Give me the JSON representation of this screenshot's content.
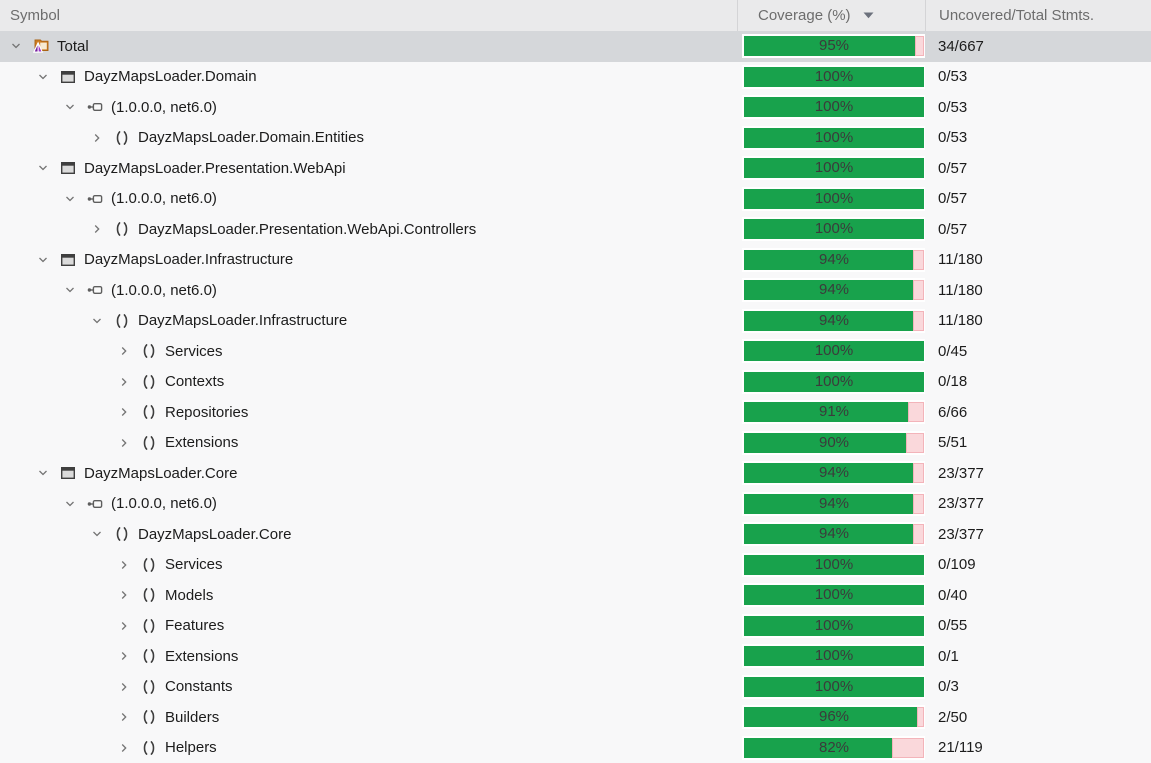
{
  "header": {
    "symbol": "Symbol",
    "coverage": "Coverage (%)",
    "uncovered": "Uncovered/Total Stmts.",
    "sort_icon": "sort-descending-icon",
    "sorted_column": "coverage"
  },
  "colors": {
    "green": "#18a24c",
    "pink_fill": "#fad8db",
    "pink_border": "#f3b4ba",
    "selected_row": "#d5d7da",
    "header_bg": "#eaeaeb",
    "row_bg": "#f8f8f9",
    "header_text": "#6d6d6d",
    "label_text": "#1c1c1c",
    "bar_text": "#3b3b3b",
    "solution_folder_orange": "#cd7c22",
    "solution_pyramid_purple": "#9c35cc"
  },
  "icon_legend": {
    "solution": "solution-icon",
    "project": "project-icon",
    "assembly": "assembly-icon",
    "namespace": "namespace-icon"
  },
  "rows": [
    {
      "label": "Total",
      "level": 0,
      "icon": "solution",
      "chevron": "expanded",
      "pct": 95,
      "pct_label": "95%",
      "stmts": "34/667",
      "selected": true
    },
    {
      "label": "DayzMapsLoader.Domain",
      "level": 1,
      "icon": "project",
      "chevron": "expanded",
      "pct": 100,
      "pct_label": "100%",
      "stmts": "0/53",
      "selected": false
    },
    {
      "label": "(1.0.0.0, net6.0)",
      "level": 2,
      "icon": "assembly",
      "chevron": "expanded",
      "pct": 100,
      "pct_label": "100%",
      "stmts": "0/53",
      "selected": false
    },
    {
      "label": "DayzMapsLoader.Domain.Entities",
      "level": 3,
      "icon": "namespace",
      "chevron": "collapsed",
      "pct": 100,
      "pct_label": "100%",
      "stmts": "0/53",
      "selected": false
    },
    {
      "label": "DayzMapsLoader.Presentation.WebApi",
      "level": 1,
      "icon": "project",
      "chevron": "expanded",
      "pct": 100,
      "pct_label": "100%",
      "stmts": "0/57",
      "selected": false
    },
    {
      "label": "(1.0.0.0, net6.0)",
      "level": 2,
      "icon": "assembly",
      "chevron": "expanded",
      "pct": 100,
      "pct_label": "100%",
      "stmts": "0/57",
      "selected": false
    },
    {
      "label": "DayzMapsLoader.Presentation.WebApi.Controllers",
      "level": 3,
      "icon": "namespace",
      "chevron": "collapsed",
      "pct": 100,
      "pct_label": "100%",
      "stmts": "0/57",
      "selected": false
    },
    {
      "label": "DayzMapsLoader.Infrastructure",
      "level": 1,
      "icon": "project",
      "chevron": "expanded",
      "pct": 94,
      "pct_label": "94%",
      "stmts": "11/180",
      "selected": false
    },
    {
      "label": "(1.0.0.0, net6.0)",
      "level": 2,
      "icon": "assembly",
      "chevron": "expanded",
      "pct": 94,
      "pct_label": "94%",
      "stmts": "11/180",
      "selected": false
    },
    {
      "label": "DayzMapsLoader.Infrastructure",
      "level": 3,
      "icon": "namespace",
      "chevron": "expanded",
      "pct": 94,
      "pct_label": "94%",
      "stmts": "11/180",
      "selected": false
    },
    {
      "label": "Services",
      "level": 4,
      "icon": "namespace",
      "chevron": "collapsed",
      "pct": 100,
      "pct_label": "100%",
      "stmts": "0/45",
      "selected": false
    },
    {
      "label": "Contexts",
      "level": 4,
      "icon": "namespace",
      "chevron": "collapsed",
      "pct": 100,
      "pct_label": "100%",
      "stmts": "0/18",
      "selected": false
    },
    {
      "label": "Repositories",
      "level": 4,
      "icon": "namespace",
      "chevron": "collapsed",
      "pct": 91,
      "pct_label": "91%",
      "stmts": "6/66",
      "selected": false
    },
    {
      "label": "Extensions",
      "level": 4,
      "icon": "namespace",
      "chevron": "collapsed",
      "pct": 90,
      "pct_label": "90%",
      "stmts": "5/51",
      "selected": false
    },
    {
      "label": "DayzMapsLoader.Core",
      "level": 1,
      "icon": "project",
      "chevron": "expanded",
      "pct": 94,
      "pct_label": "94%",
      "stmts": "23/377",
      "selected": false
    },
    {
      "label": "(1.0.0.0, net6.0)",
      "level": 2,
      "icon": "assembly",
      "chevron": "expanded",
      "pct": 94,
      "pct_label": "94%",
      "stmts": "23/377",
      "selected": false
    },
    {
      "label": "DayzMapsLoader.Core",
      "level": 3,
      "icon": "namespace",
      "chevron": "expanded",
      "pct": 94,
      "pct_label": "94%",
      "stmts": "23/377",
      "selected": false
    },
    {
      "label": "Services",
      "level": 4,
      "icon": "namespace",
      "chevron": "collapsed",
      "pct": 100,
      "pct_label": "100%",
      "stmts": "0/109",
      "selected": false
    },
    {
      "label": "Models",
      "level": 4,
      "icon": "namespace",
      "chevron": "collapsed",
      "pct": 100,
      "pct_label": "100%",
      "stmts": "0/40",
      "selected": false
    },
    {
      "label": "Features",
      "level": 4,
      "icon": "namespace",
      "chevron": "collapsed",
      "pct": 100,
      "pct_label": "100%",
      "stmts": "0/55",
      "selected": false
    },
    {
      "label": "Extensions",
      "level": 4,
      "icon": "namespace",
      "chevron": "collapsed",
      "pct": 100,
      "pct_label": "100%",
      "stmts": "0/1",
      "selected": false
    },
    {
      "label": "Constants",
      "level": 4,
      "icon": "namespace",
      "chevron": "collapsed",
      "pct": 100,
      "pct_label": "100%",
      "stmts": "0/3",
      "selected": false
    },
    {
      "label": "Builders",
      "level": 4,
      "icon": "namespace",
      "chevron": "collapsed",
      "pct": 96,
      "pct_label": "96%",
      "stmts": "2/50",
      "selected": false
    },
    {
      "label": "Helpers",
      "level": 4,
      "icon": "namespace",
      "chevron": "collapsed",
      "pct": 82,
      "pct_label": "82%",
      "stmts": "21/119",
      "selected": false
    }
  ]
}
